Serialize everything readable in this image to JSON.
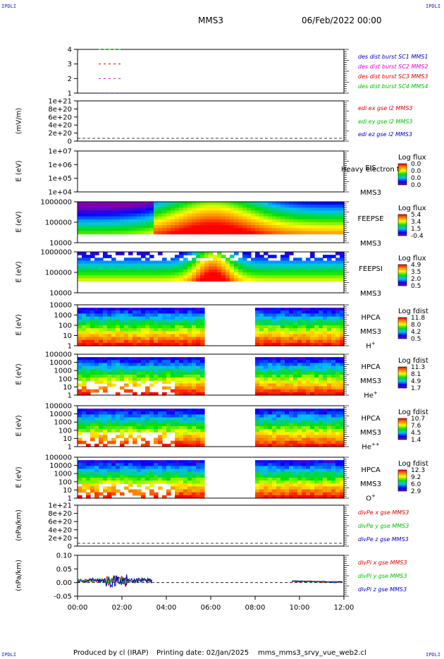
{
  "corners": {
    "tl": "IPDLI",
    "tr": "IPDLI",
    "bl": "IPDLI",
    "br": "IPDLI"
  },
  "header": {
    "mission": "MMS3",
    "datetime": "06/Feb/2022 00:00"
  },
  "footer": {
    "produced": "Produced by cl (IRAP)",
    "printing": "Printing date: 02/Jan/2025",
    "file": "mms_mms3_srvy_vue_web2.cl"
  },
  "x_ticks": [
    "00:00",
    "02:00",
    "04:00",
    "06:00",
    "08:00",
    "10:00",
    "12:00"
  ],
  "colors": {
    "red": "#e00000",
    "green": "#00c000",
    "blue": "#0000c0",
    "magenta": "#e000e0"
  },
  "chart_data": [
    {
      "type": "line",
      "id": "burst",
      "ylabel": "",
      "yticks": [
        "4",
        "3",
        "2",
        "1"
      ],
      "legend": [
        {
          "name": "des dist burst SC1 MMS1",
          "color": "#0000c0"
        },
        {
          "name": "des dist burst SC2 MMS2",
          "color": "#e000e0"
        },
        {
          "name": "des dist burst SC3 MMS3",
          "color": "#e00000"
        },
        {
          "name": "des dist burst SC4 MMS4",
          "color": "#00c000"
        }
      ]
    },
    {
      "type": "line",
      "id": "edi",
      "ylabel": "(mV/m)",
      "yticks": [
        "1e+21",
        "8e+20",
        "6e+20",
        "4e+20",
        "2e+20",
        "0"
      ],
      "legend": [
        {
          "name": "edi ex gse l2 MMS3",
          "color": "#e00000"
        },
        {
          "name": "edi ey gse l2 MMS3",
          "color": "#00c000"
        },
        {
          "name": "edi ez gse l2 MMS3",
          "color": "#0000c0"
        }
      ]
    },
    {
      "type": "heatmap",
      "id": "eis",
      "ylabel": "E (eV)",
      "yticks": [
        "1e+07",
        "1e+06",
        "1e+05",
        "1e+04"
      ],
      "instrument": [
        "EIS",
        "MMS3"
      ],
      "overlay": "Heavy electron to",
      "cb_title": "Log flux",
      "cb_ticks": [
        "0.0",
        "0.0",
        "0.0",
        "0.0"
      ]
    },
    {
      "type": "heatmap",
      "id": "feepse",
      "ylabel": "E (eV)",
      "yticks": [
        "1000000",
        "100000",
        "10000"
      ],
      "instrument": [
        "FEEPSE",
        "MMS3"
      ],
      "cb_title": "Log flux",
      "cb_ticks": [
        "5.4",
        "3.4",
        "1.5",
        "-0.4"
      ]
    },
    {
      "type": "heatmap",
      "id": "feepsi",
      "ylabel": "E (eV)",
      "yticks": [
        "1000000",
        "100000",
        "10000"
      ],
      "instrument": [
        "FEEPSI",
        "MMS3"
      ],
      "cb_title": "Log flux",
      "cb_ticks": [
        "4.9",
        "3.5",
        "2.0",
        "0.5"
      ]
    },
    {
      "type": "heatmap",
      "id": "hpca_h",
      "ylabel": "E (eV)",
      "yticks": [
        "10000",
        "1000",
        "100",
        "10",
        "1"
      ],
      "instrument": [
        "HPCA",
        "MMS3"
      ],
      "species": "H",
      "charge": "+",
      "cb_title": "Log fdist",
      "cb_ticks": [
        "11.8",
        "8.0",
        "4.2",
        "0.5"
      ]
    },
    {
      "type": "heatmap",
      "id": "hpca_he",
      "ylabel": "E (eV)",
      "yticks": [
        "100000",
        "10000",
        "1000",
        "100",
        "10",
        "1"
      ],
      "instrument": [
        "HPCA",
        "MMS3"
      ],
      "species": "He",
      "charge": "+",
      "cb_title": "Log fdist",
      "cb_ticks": [
        "11.3",
        "8.1",
        "4.9",
        "1.7"
      ]
    },
    {
      "type": "heatmap",
      "id": "hpca_hepp",
      "ylabel": "E (eV)",
      "yticks": [
        "100000",
        "10000",
        "1000",
        "100",
        "10",
        "1"
      ],
      "instrument": [
        "HPCA",
        "MMS3"
      ],
      "species": "He",
      "charge": "++",
      "cb_title": "Log fdist",
      "cb_ticks": [
        "10.7",
        "7.6",
        "4.5",
        "1.4"
      ]
    },
    {
      "type": "heatmap",
      "id": "hpca_o",
      "ylabel": "E (eV)",
      "yticks": [
        "100000",
        "10000",
        "1000",
        "100",
        "10",
        "1"
      ],
      "instrument": [
        "HPCA",
        "MMS3"
      ],
      "species": "O",
      "charge": "+",
      "cb_title": "Log fdist",
      "cb_ticks": [
        "12.3",
        "9.2",
        "6.0",
        "2.9"
      ]
    },
    {
      "type": "line",
      "id": "divpe",
      "ylabel": "(nPa/km)",
      "yticks": [
        "1e+21",
        "8e+20",
        "6e+20",
        "4e+20",
        "2e+20",
        "0"
      ],
      "legend": [
        {
          "name": "divPe x gse MMS3",
          "color": "#e00000"
        },
        {
          "name": "divPe y gse MMS3",
          "color": "#00c000"
        },
        {
          "name": "divPe z gse MMS3",
          "color": "#0000c0"
        }
      ]
    },
    {
      "type": "line",
      "id": "divpi",
      "ylabel": "(nPa/km)",
      "yticks": [
        "0.10",
        "0.05",
        "0.00",
        "-0.05"
      ],
      "legend": [
        {
          "name": "divPi x gse MMS3",
          "color": "#e00000"
        },
        {
          "name": "divPi y gse MMS3",
          "color": "#00c000"
        },
        {
          "name": "divPi z gse MMS3",
          "color": "#0000c0"
        }
      ]
    }
  ]
}
